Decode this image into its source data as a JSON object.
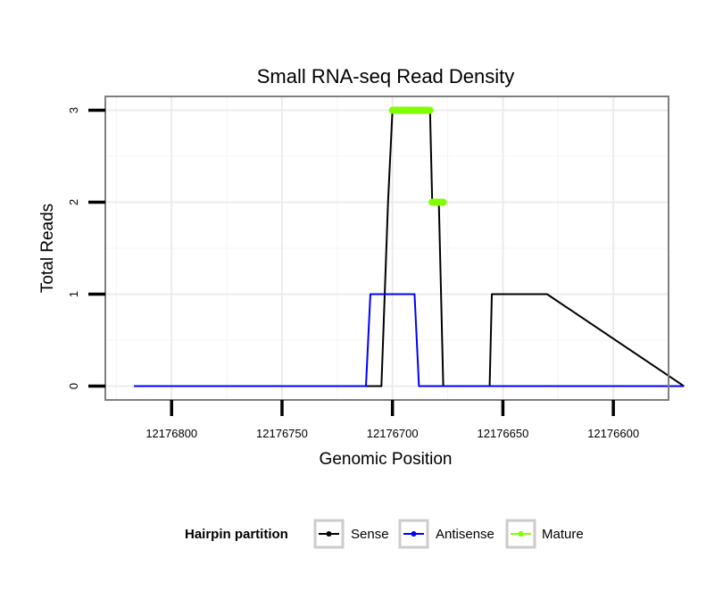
{
  "chart_data": {
    "type": "line",
    "title": "Small RNA-seq Read Density",
    "xlabel": "Genomic Position",
    "ylabel": "Total Reads",
    "x_reversed": true,
    "xlim": [
      12176830,
      12176575
    ],
    "ylim": [
      -0.15,
      3.15
    ],
    "x_ticks": [
      12176800,
      12176750,
      12176700,
      12176650,
      12176600
    ],
    "x_tick_labels": [
      "12176800",
      "12176750",
      "12176700",
      "12176650",
      "12176600"
    ],
    "y_ticks": [
      0,
      1,
      2,
      3
    ],
    "y_tick_labels": [
      "0",
      "1",
      "2",
      "3"
    ],
    "grid": true,
    "series": [
      {
        "name": "Sense",
        "color": "#000000",
        "x": [
          12176817,
          12176705,
          12176702,
          12176700,
          12176683,
          12176682,
          12176679,
          12176677,
          12176667,
          12176656,
          12176655,
          12176630,
          12176568
        ],
        "y": [
          0,
          0,
          2,
          3,
          3,
          2,
          2,
          0,
          0,
          0,
          1,
          1,
          0
        ]
      },
      {
        "name": "Antisense",
        "color": "#0000ff",
        "x": [
          12176817,
          12176712,
          12176710,
          12176690,
          12176688,
          12176630,
          12176568
        ],
        "y": [
          0,
          0,
          1,
          1,
          0,
          0,
          0
        ]
      },
      {
        "name": "Mature",
        "color": "#7fff00",
        "segments": [
          {
            "x": [
              12176700,
              12176683
            ],
            "y": [
              3,
              3
            ]
          },
          {
            "x": [
              12176682,
              12176677
            ],
            "y": [
              2,
              2
            ]
          }
        ]
      }
    ],
    "legend": {
      "title": "Hairpin partition",
      "position": "bottom",
      "entries": [
        {
          "label": "Sense",
          "color": "#000000"
        },
        {
          "label": "Antisense",
          "color": "#0000ff"
        },
        {
          "label": "Mature",
          "color": "#7fff00"
        }
      ]
    }
  }
}
